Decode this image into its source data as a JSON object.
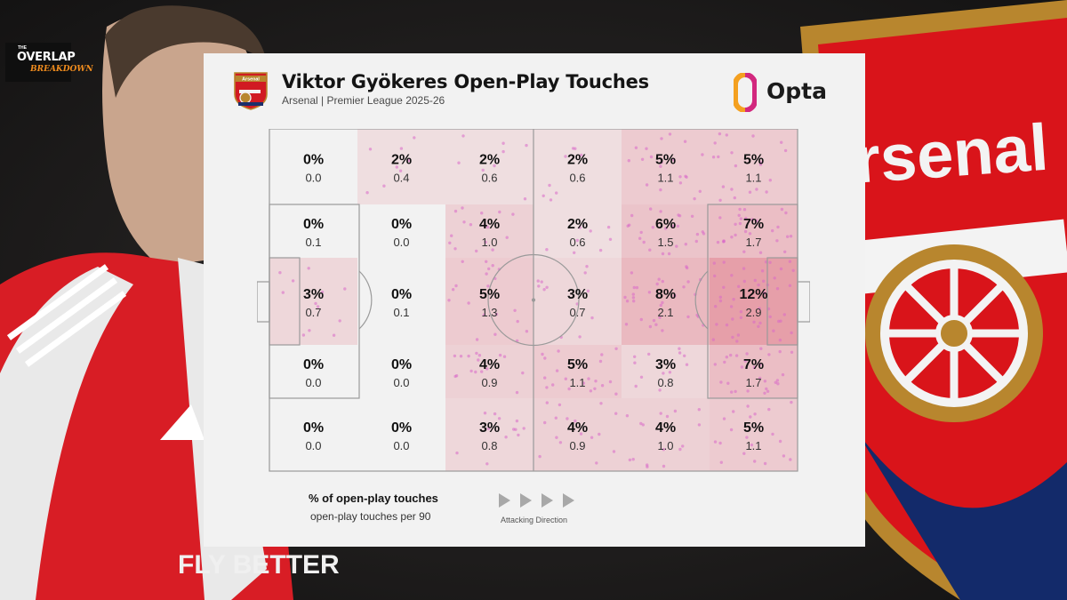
{
  "branding": {
    "overlap_the": "THE",
    "overlap_word": "OVERLAP",
    "overlap_sub": "BREAKDOWN",
    "bg_text": "Arsenal",
    "shirt_text": "FLY BETTER"
  },
  "header": {
    "crest_label": "Arsenal",
    "title": "Viktor Gyökeres Open-Play Touches",
    "subtitle": "Arsenal | Premier League 2025-26",
    "opta_label": "Opta"
  },
  "legend": {
    "pct_label": "% of open-play touches",
    "per90_label": "open-play touches per 90",
    "direction_label": "Attacking Direction"
  },
  "colors": {
    "heat_base": "#e07080",
    "dot": "#d868c8",
    "card_bg": "#f2f2f2",
    "pitch_line": "#9a9a9a",
    "opta_orange": "#f4a020",
    "opta_pink": "#d2287e",
    "arsenal_red": "#db0007"
  },
  "chart_data": {
    "type": "heatmap",
    "title": "Viktor Gyökeres Open-Play Touches",
    "subtitle": "Arsenal | Premier League 2025-26",
    "rows": 5,
    "cols": 6,
    "attacking_direction": "left-to-right",
    "pct": [
      [
        "0%",
        "2%",
        "2%",
        "2%",
        "5%",
        "5%"
      ],
      [
        "0%",
        "0%",
        "4%",
        "2%",
        "6%",
        "7%"
      ],
      [
        "3%",
        "0%",
        "5%",
        "3%",
        "8%",
        "12%"
      ],
      [
        "0%",
        "0%",
        "4%",
        "5%",
        "3%",
        "7%"
      ],
      [
        "0%",
        "0%",
        "3%",
        "4%",
        "4%",
        "5%"
      ]
    ],
    "per90": [
      [
        "0.0",
        "0.4",
        "0.6",
        "0.6",
        "1.1",
        "1.1"
      ],
      [
        "0.1",
        "0.0",
        "1.0",
        "0.6",
        "1.5",
        "1.7"
      ],
      [
        "0.7",
        "0.1",
        "1.3",
        "0.7",
        "2.1",
        "2.9"
      ],
      [
        "0.0",
        "0.0",
        "0.9",
        "1.1",
        "0.8",
        "1.7"
      ],
      [
        "0.0",
        "0.0",
        "0.8",
        "0.9",
        "1.0",
        "1.1"
      ]
    ],
    "pct_values": [
      [
        0,
        2,
        2,
        2,
        5,
        5
      ],
      [
        0,
        0,
        4,
        2,
        6,
        7
      ],
      [
        3,
        0,
        5,
        3,
        8,
        12
      ],
      [
        0,
        0,
        4,
        5,
        3,
        7
      ],
      [
        0,
        0,
        3,
        4,
        4,
        5
      ]
    ]
  }
}
